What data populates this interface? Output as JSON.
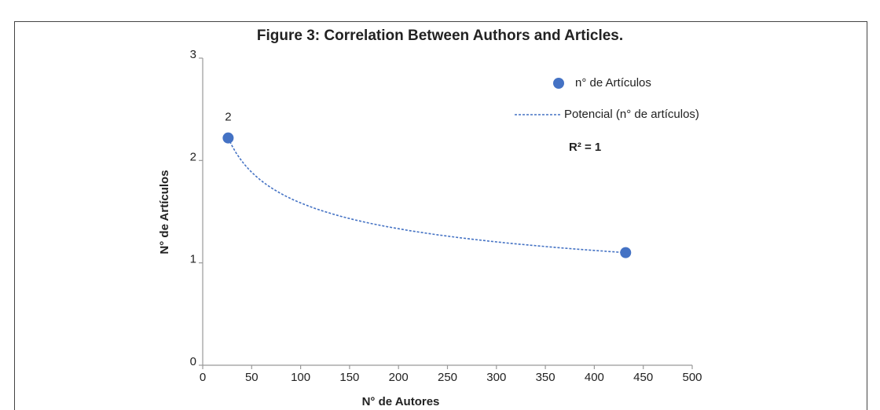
{
  "chart_data": {
    "type": "scatter",
    "title": "Figure 3: Correlation Between Authors and Articles.",
    "x_label": "N° de Autores",
    "y_label": "N° de Artículos",
    "series": [
      {
        "name": "n° de Artículos",
        "color": "#4472c4",
        "x": [
          26,
          432
        ],
        "values": [
          2.22,
          1.1
        ],
        "value_labels": [
          "2",
          null
        ]
      }
    ],
    "trendline": {
      "name": "Potencial (n° de artículos)",
      "type": "power",
      "color": "#4472c4",
      "annotation": "R² = 1"
    },
    "xlim": [
      0,
      500
    ],
    "xticks": [
      0,
      50,
      100,
      150,
      200,
      250,
      300,
      350,
      400,
      450,
      500
    ],
    "ylim": [
      0,
      3
    ],
    "yticks": [
      0,
      1,
      2,
      3
    ]
  }
}
